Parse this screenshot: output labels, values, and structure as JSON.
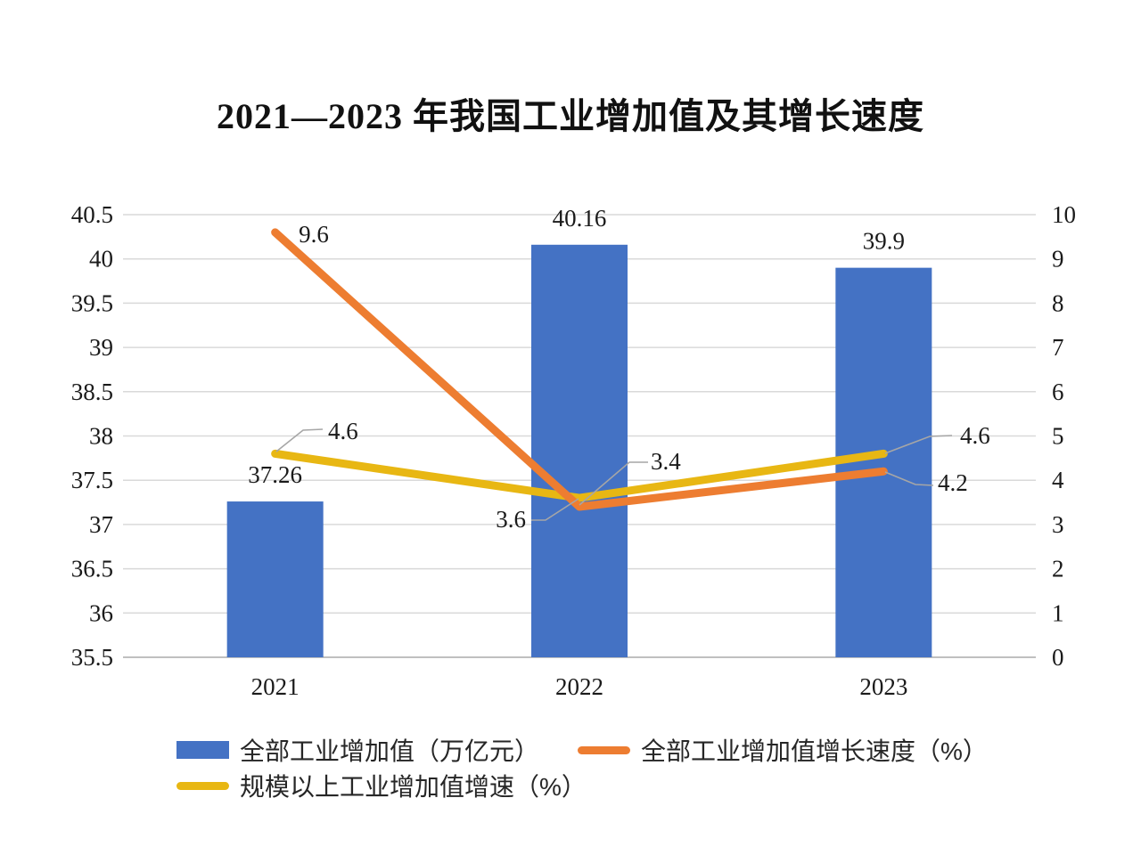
{
  "chart_data": {
    "type": "bar+line combo",
    "title": "2021—2023 年我国工业增加值及其增长速度",
    "categories": [
      "2021",
      "2022",
      "2023"
    ],
    "series": [
      {
        "name": "全部工业增加值（万亿元）",
        "type": "bar",
        "axis": "left",
        "color": "#4472C4",
        "values": [
          37.26,
          40.16,
          39.9
        ],
        "labels": [
          "37.26",
          "40.16",
          "39.9"
        ]
      },
      {
        "name": "全部工业增加值增长速度（%）",
        "type": "line",
        "axis": "right",
        "color": "#ED7D31",
        "values": [
          9.6,
          3.4,
          4.2
        ],
        "labels": [
          "9.6",
          "3.4",
          "4.2"
        ]
      },
      {
        "name": "规模以上工业增加值增速（%）",
        "type": "line",
        "axis": "right",
        "color": "#E8B713",
        "values": [
          4.6,
          3.6,
          4.6
        ],
        "labels": [
          "4.6",
          "3.6",
          "4.6"
        ]
      }
    ],
    "left_axis": {
      "min": 35.5,
      "max": 40.5,
      "tick_labels": [
        "35.5",
        "36",
        "36.5",
        "37",
        "37.5",
        "38",
        "38.5",
        "39",
        "39.5",
        "40",
        "40.5"
      ]
    },
    "right_axis": {
      "min": 0,
      "max": 10,
      "tick_labels": [
        "0",
        "1",
        "2",
        "3",
        "4",
        "5",
        "6",
        "7",
        "8",
        "9",
        "10"
      ]
    },
    "grid": true,
    "legend_position": "bottom"
  },
  "colors": {
    "background": "#FFFFFF",
    "gridline": "#D9D9D9",
    "axis_line": "#C0C0C0",
    "leader_line": "#A6A6A6",
    "text": "#1A1A1A"
  }
}
